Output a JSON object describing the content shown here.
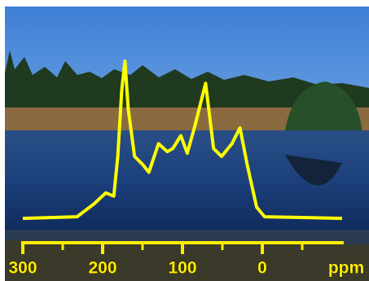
{
  "chart_data": {
    "type": "line",
    "x": [
      300,
      232,
      211,
      196,
      186,
      181,
      176,
      172,
      168,
      160,
      150,
      142,
      130,
      119,
      112,
      102,
      94,
      84,
      71,
      61,
      51,
      38,
      28,
      19,
      7,
      -3,
      -100
    ],
    "series": [
      {
        "color": "#ffff00",
        "values": [
          1,
          2,
          10,
          17,
          15,
          40,
          82,
          100,
          70,
          40,
          35,
          30,
          48,
          43,
          45,
          53,
          42,
          60,
          86,
          45,
          40,
          48,
          58,
          35,
          8,
          2,
          1
        ]
      }
    ],
    "xlim": [
      300,
      -100
    ],
    "ylim": [
      0,
      100
    ],
    "xticks": [
      300,
      200,
      100,
      0
    ],
    "minor_xticks": [
      250,
      150,
      50,
      -50
    ],
    "xlabel": "ppm"
  }
}
